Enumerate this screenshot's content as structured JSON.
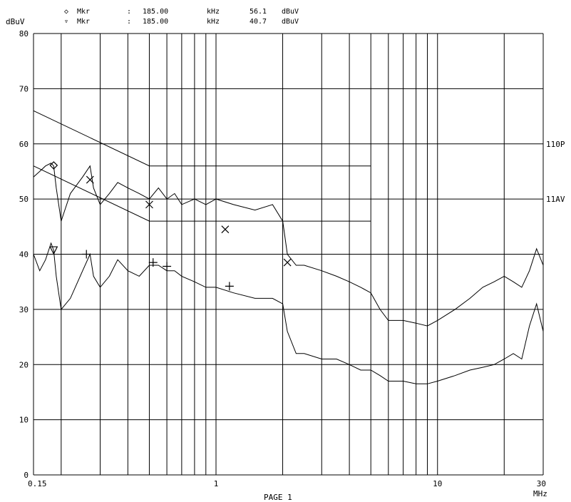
{
  "header": {
    "lines": [
      {
        "symbol": "◇",
        "label": "Mkr",
        "sep": ":",
        "freq": "185.00",
        "funit": "kHz",
        "value": "56.1",
        "vunit": "dBuV"
      },
      {
        "symbol": "▿",
        "label": "Mkr",
        "sep": ":",
        "freq": "185.00",
        "funit": "kHz",
        "value": "40.7",
        "vunit": "dBuV"
      }
    ]
  },
  "footer": {
    "page": "PAGE 1"
  },
  "chart_data": {
    "type": "line",
    "xscale": "log",
    "xlim": [
      0.15,
      30
    ],
    "ylim": [
      0,
      80
    ],
    "ylabel": "dBuV",
    "xunit": "MHz",
    "yticks": [
      0,
      10,
      20,
      30,
      40,
      50,
      60,
      70,
      80
    ],
    "xtick_labels": [
      {
        "x": 0.15,
        "label": "0.15"
      },
      {
        "x": 1,
        "label": "1"
      },
      {
        "x": 10,
        "label": "10"
      },
      {
        "x": 30,
        "label": "30"
      }
    ],
    "x_gridlines": [
      0.15,
      0.2,
      0.3,
      0.4,
      0.5,
      0.6,
      0.7,
      0.8,
      0.9,
      1,
      2,
      3,
      4,
      5,
      6,
      7,
      8,
      9,
      10,
      20,
      30
    ],
    "limit_labels": [
      {
        "y": 60,
        "label": "110P"
      },
      {
        "y": 50,
        "label": "11AV"
      }
    ],
    "limit_lines": [
      {
        "name": "QP",
        "points": [
          [
            0.15,
            66
          ],
          [
            0.5,
            56
          ],
          [
            5,
            56
          ]
        ]
      },
      {
        "name": "AV",
        "points": [
          [
            0.15,
            56
          ],
          [
            0.5,
            46
          ],
          [
            5,
            46
          ]
        ]
      }
    ],
    "series": [
      {
        "points": [
          [
            0.15,
            54
          ],
          [
            0.16,
            55
          ],
          [
            0.17,
            56
          ],
          [
            0.18,
            56.5
          ],
          [
            0.185,
            56
          ],
          [
            0.19,
            52
          ],
          [
            0.2,
            46
          ],
          [
            0.22,
            51
          ],
          [
            0.25,
            54
          ],
          [
            0.27,
            56
          ],
          [
            0.28,
            52
          ],
          [
            0.3,
            49
          ],
          [
            0.33,
            51
          ],
          [
            0.36,
            53
          ],
          [
            0.4,
            52
          ],
          [
            0.45,
            51
          ],
          [
            0.5,
            50
          ],
          [
            0.55,
            52
          ],
          [
            0.6,
            50
          ],
          [
            0.65,
            51
          ],
          [
            0.7,
            49
          ],
          [
            0.8,
            50
          ],
          [
            0.9,
            49
          ],
          [
            1,
            50
          ],
          [
            1.2,
            49
          ],
          [
            1.5,
            48
          ],
          [
            1.8,
            49
          ],
          [
            2,
            46
          ],
          [
            2.1,
            40
          ],
          [
            2.3,
            38
          ],
          [
            2.5,
            38
          ],
          [
            3,
            37
          ],
          [
            3.5,
            36
          ],
          [
            4,
            35
          ],
          [
            4.5,
            34
          ],
          [
            5,
            33
          ],
          [
            5.5,
            30
          ],
          [
            6,
            28
          ],
          [
            7,
            28
          ],
          [
            8,
            27.5
          ],
          [
            9,
            27
          ],
          [
            10,
            28
          ],
          [
            12,
            30
          ],
          [
            14,
            32
          ],
          [
            16,
            34
          ],
          [
            18,
            35
          ],
          [
            20,
            36
          ],
          [
            22,
            35
          ],
          [
            24,
            34
          ],
          [
            26,
            37
          ],
          [
            28,
            41
          ],
          [
            30,
            38
          ]
        ]
      },
      {
        "points": [
          [
            0.15,
            40
          ],
          [
            0.16,
            37
          ],
          [
            0.17,
            39
          ],
          [
            0.18,
            42
          ],
          [
            0.185,
            40.7
          ],
          [
            0.19,
            36
          ],
          [
            0.2,
            30
          ],
          [
            0.22,
            32
          ],
          [
            0.25,
            37
          ],
          [
            0.27,
            40
          ],
          [
            0.28,
            36
          ],
          [
            0.3,
            34
          ],
          [
            0.33,
            36
          ],
          [
            0.36,
            39
          ],
          [
            0.4,
            37
          ],
          [
            0.45,
            36
          ],
          [
            0.5,
            38
          ],
          [
            0.55,
            38
          ],
          [
            0.6,
            37
          ],
          [
            0.65,
            37
          ],
          [
            0.7,
            36
          ],
          [
            0.8,
            35
          ],
          [
            0.9,
            34
          ],
          [
            1,
            34
          ],
          [
            1.2,
            33
          ],
          [
            1.5,
            32
          ],
          [
            1.8,
            32
          ],
          [
            2,
            31
          ],
          [
            2.1,
            26
          ],
          [
            2.3,
            22
          ],
          [
            2.5,
            22
          ],
          [
            3,
            21
          ],
          [
            3.5,
            21
          ],
          [
            4,
            20
          ],
          [
            4.5,
            19
          ],
          [
            5,
            19
          ],
          [
            5.5,
            18
          ],
          [
            6,
            17
          ],
          [
            7,
            17
          ],
          [
            8,
            16.5
          ],
          [
            9,
            16.5
          ],
          [
            10,
            17
          ],
          [
            12,
            18
          ],
          [
            14,
            19
          ],
          [
            16,
            19.5
          ],
          [
            18,
            20
          ],
          [
            20,
            21
          ],
          [
            22,
            22
          ],
          [
            24,
            21
          ],
          [
            26,
            27
          ],
          [
            28,
            31
          ],
          [
            30,
            26
          ]
        ]
      }
    ],
    "markers": [
      {
        "shape": "diamond",
        "x": 0.185,
        "y": 56.1
      },
      {
        "shape": "triangle",
        "x": 0.185,
        "y": 40.7
      },
      {
        "shape": "x",
        "x": 0.27,
        "y": 53.5
      },
      {
        "shape": "x",
        "x": 0.5,
        "y": 49
      },
      {
        "shape": "x",
        "x": 1.1,
        "y": 44.5
      },
      {
        "shape": "x",
        "x": 2.1,
        "y": 38.5
      },
      {
        "shape": "plus",
        "x": 0.26,
        "y": 40
      },
      {
        "shape": "plus",
        "x": 0.52,
        "y": 38.5
      },
      {
        "shape": "plus",
        "x": 0.6,
        "y": 37.8
      },
      {
        "shape": "plus",
        "x": 1.15,
        "y": 34.2
      }
    ]
  }
}
